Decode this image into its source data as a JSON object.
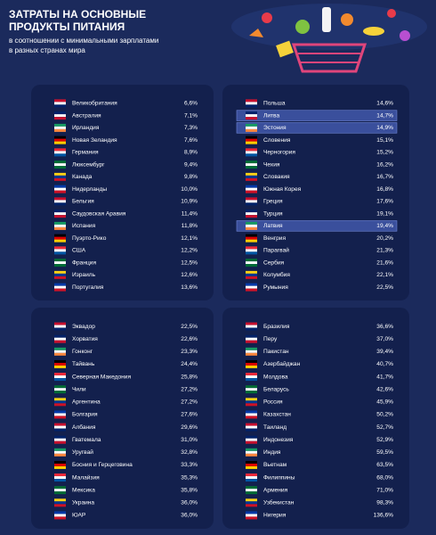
{
  "header": {
    "title_lines": [
      "ЗАТРАТЫ НА ОСНОВНЫЕ",
      "ПРОДУКТЫ ПИТАНИЯ"
    ],
    "subtitle_lines": [
      "в соотношении с минимальными зарплатами",
      "в разных странах мира"
    ]
  },
  "panels": [
    {
      "rows": [
        {
          "name": "Великобритания",
          "value": "6,6%"
        },
        {
          "name": "Австралия",
          "value": "7,1%"
        },
        {
          "name": "Ирландия",
          "value": "7,3%"
        },
        {
          "name": "Новая Зеландия",
          "value": "7,6%"
        },
        {
          "name": "Германия",
          "value": "8,9%"
        },
        {
          "name": "Люксембург",
          "value": "9,4%"
        },
        {
          "name": "Канада",
          "value": "9,8%"
        },
        {
          "name": "Нидерланды",
          "value": "10,0%"
        },
        {
          "name": "Бельгия",
          "value": "10,9%"
        },
        {
          "name": "Саудовская Аравия",
          "value": "11,4%"
        },
        {
          "name": "Испания",
          "value": "11,8%"
        },
        {
          "name": "Пуэрто-Рико",
          "value": "12,1%"
        },
        {
          "name": "США",
          "value": "12,2%"
        },
        {
          "name": "Франция",
          "value": "12,5%"
        },
        {
          "name": "Израиль",
          "value": "12,6%"
        },
        {
          "name": "Португалия",
          "value": "13,6%"
        }
      ]
    },
    {
      "rows": [
        {
          "name": "Польша",
          "value": "14,6%"
        },
        {
          "name": "Литва",
          "value": "14,7%",
          "highlighted": true
        },
        {
          "name": "Эстония",
          "value": "14,9%",
          "highlighted": true
        },
        {
          "name": "Словения",
          "value": "15,1%"
        },
        {
          "name": "Черногория",
          "value": "15,2%"
        },
        {
          "name": "Чехия",
          "value": "16,2%"
        },
        {
          "name": "Словакия",
          "value": "16,7%"
        },
        {
          "name": "Южная Корея",
          "value": "16,8%"
        },
        {
          "name": "Греция",
          "value": "17,6%"
        },
        {
          "name": "Турция",
          "value": "19,1%"
        },
        {
          "name": "Латвия",
          "value": "19,4%",
          "highlighted": true
        },
        {
          "name": "Венгрия",
          "value": "20,2%"
        },
        {
          "name": "Парагвай",
          "value": "21,3%"
        },
        {
          "name": "Сербия",
          "value": "21,6%"
        },
        {
          "name": "Колумбия",
          "value": "22,1%"
        },
        {
          "name": "Румыния",
          "value": "22,5%"
        }
      ]
    },
    {
      "rows": [
        {
          "name": "Эквадор",
          "value": "22,5%"
        },
        {
          "name": "Хорватия",
          "value": "22,6%"
        },
        {
          "name": "Гонконг",
          "value": "23,3%"
        },
        {
          "name": "Тайвань",
          "value": "24,4%"
        },
        {
          "name": "Северная Македония",
          "value": "25,8%"
        },
        {
          "name": "Чили",
          "value": "27,2%"
        },
        {
          "name": "Аргентина",
          "value": "27,2%"
        },
        {
          "name": "Болгария",
          "value": "27,6%"
        },
        {
          "name": "Албания",
          "value": "29,6%"
        },
        {
          "name": "Гватемала",
          "value": "31,0%"
        },
        {
          "name": "Уругвай",
          "value": "32,8%"
        },
        {
          "name": "Босния и Герцеговина",
          "value": "33,3%"
        },
        {
          "name": "Малайзия",
          "value": "35,3%"
        },
        {
          "name": "Мексика",
          "value": "35,8%"
        },
        {
          "name": "Украина",
          "value": "36,0%"
        },
        {
          "name": "ЮАР",
          "value": "36,0%"
        }
      ]
    },
    {
      "rows": [
        {
          "name": "Бразилия",
          "value": "36,6%"
        },
        {
          "name": "Перу",
          "value": "37,0%"
        },
        {
          "name": "Пакистан",
          "value": "39,4%"
        },
        {
          "name": "Азербайджан",
          "value": "40,7%"
        },
        {
          "name": "Молдова",
          "value": "41,7%"
        },
        {
          "name": "Беларусь",
          "value": "42,6%"
        },
        {
          "name": "Россия",
          "value": "45,9%"
        },
        {
          "name": "Казахстан",
          "value": "50,2%"
        },
        {
          "name": "Таиланд",
          "value": "52,7%"
        },
        {
          "name": "Индонезия",
          "value": "52,9%"
        },
        {
          "name": "Индия",
          "value": "59,5%"
        },
        {
          "name": "Вьетнам",
          "value": "63,5%"
        },
        {
          "name": "Филиппины",
          "value": "68,0%"
        },
        {
          "name": "Армения",
          "value": "71,0%"
        },
        {
          "name": "Узбекистан",
          "value": "98,3%"
        },
        {
          "name": "Нигерия",
          "value": "136,6%"
        }
      ]
    }
  ]
}
